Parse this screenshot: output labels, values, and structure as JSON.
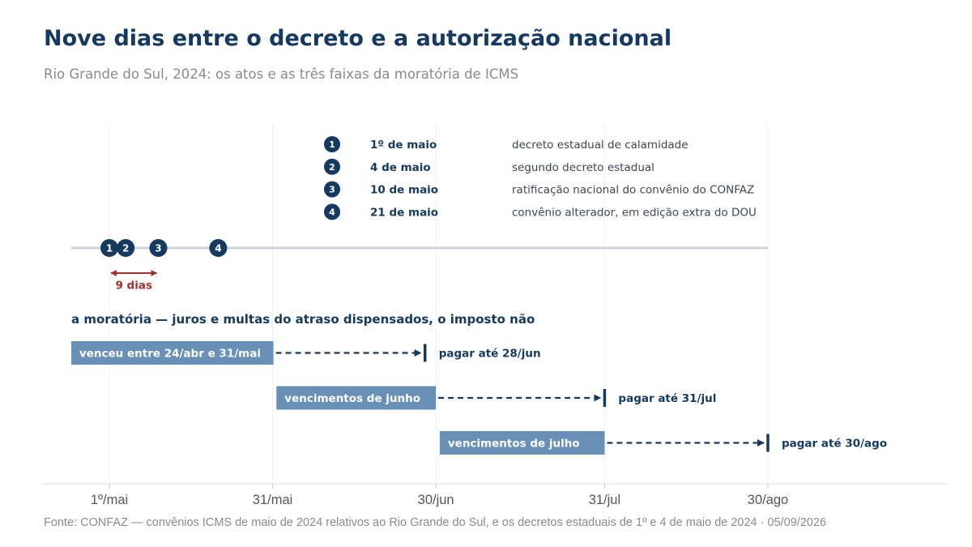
{
  "header": {
    "title": "Nove dias entre o decreto e a autorização nacional",
    "subtitle": "Rio Grande do Sul, 2024: os atos e as três faixas da moratória de ICMS"
  },
  "footer": {
    "source": "Fonte: CONFAZ — convênios ICMS de maio de 2024 relativos ao Rio Grande do Sul, e os decretos estaduais de 1º e 4 de maio de 2024 · 05/09/2026"
  },
  "chart_data": {
    "type": "timeline",
    "x_axis": {
      "range": [
        "2024-04-24",
        "2024-09-30"
      ],
      "ticks": [
        {
          "date": "2024-05-01",
          "label": "1º/mai"
        },
        {
          "date": "2024-05-31",
          "label": "31/mai"
        },
        {
          "date": "2024-06-30",
          "label": "30/jun"
        },
        {
          "date": "2024-07-31",
          "label": "31/jul"
        },
        {
          "date": "2024-08-30",
          "label": "30/ago"
        }
      ],
      "grid": true
    },
    "events": [
      {
        "marker": "1",
        "date": "2024-05-01",
        "date_label": "1º de maio",
        "description": "decreto estadual de calamidade"
      },
      {
        "marker": "2",
        "date": "2024-05-04",
        "date_label": "4 de maio",
        "description": "segundo decreto estadual"
      },
      {
        "marker": "3",
        "date": "2024-05-10",
        "date_label": "10 de maio",
        "description": "ratificação nacional do convênio do CONFAZ"
      },
      {
        "marker": "4",
        "date": "2024-05-21",
        "date_label": "21 de maio",
        "description": "convênio alterador, em edição extra do DOU"
      }
    ],
    "span_annotation": {
      "start": "2024-05-01",
      "end": "2024-05-10",
      "label": "9 dias"
    },
    "moratoria": {
      "heading": "a moratória — juros e multas do atraso dispensados, o imposto não",
      "bands": [
        {
          "label": "venceu entre 24/abr e 31/mai",
          "start": "2024-04-24",
          "end": "2024-05-31",
          "due": "2024-06-28",
          "due_label": "pagar até 28/jun"
        },
        {
          "label": "vencimentos de junho",
          "start": "2024-06-01",
          "end": "2024-06-30",
          "due": "2024-07-31",
          "due_label": "pagar até 31/jul"
        },
        {
          "label": "vencimentos de julho",
          "start": "2024-07-01",
          "end": "2024-07-31",
          "due": "2024-08-30",
          "due_label": "pagar até 30/ago"
        }
      ]
    },
    "colors": {
      "navy": "#163a5f",
      "band": "#6890b6",
      "accent_red": "#a3312b",
      "timeline": "#cdd6df",
      "grid": "#eef1f4",
      "text_gray": "#8a8a8a",
      "text_dark": "#3d4654"
    }
  }
}
